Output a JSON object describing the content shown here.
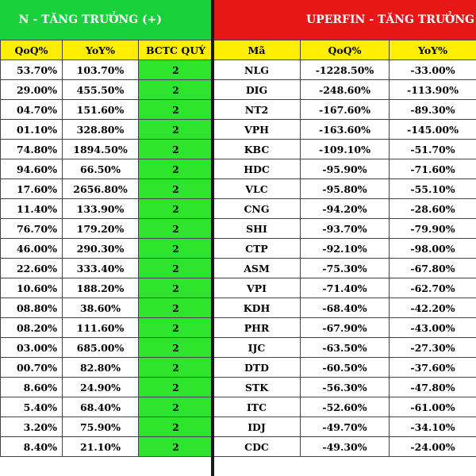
{
  "left": {
    "title": "N - TĂNG TRƯỞNG (+)",
    "headers": [
      "QoQ%",
      "YoY%",
      "BCTC QUÝ"
    ],
    "rows": [
      [
        "53.70%",
        "103.70%",
        "2"
      ],
      [
        "29.00%",
        "455.50%",
        "2"
      ],
      [
        "04.70%",
        "151.60%",
        "2"
      ],
      [
        "01.10%",
        "328.80%",
        "2"
      ],
      [
        "74.80%",
        "1894.50%",
        "2"
      ],
      [
        "94.60%",
        "66.50%",
        "2"
      ],
      [
        "17.60%",
        "2656.80%",
        "2"
      ],
      [
        "11.40%",
        "133.90%",
        "2"
      ],
      [
        "76.70%",
        "179.20%",
        "2"
      ],
      [
        "46.00%",
        "290.30%",
        "2"
      ],
      [
        "22.60%",
        "333.40%",
        "2"
      ],
      [
        "10.60%",
        "188.20%",
        "2"
      ],
      [
        "08.80%",
        "38.60%",
        "2"
      ],
      [
        "08.20%",
        "111.60%",
        "2"
      ],
      [
        "03.00%",
        "685.00%",
        "2"
      ],
      [
        "00.70%",
        "82.80%",
        "2"
      ],
      [
        "8.60%",
        "24.90%",
        "2"
      ],
      [
        "5.40%",
        "68.40%",
        "2"
      ],
      [
        "3.20%",
        "75.90%",
        "2"
      ],
      [
        "8.40%",
        "21.10%",
        "2"
      ]
    ]
  },
  "right": {
    "title": "UPERFIN - TĂNG TRƯỞNG",
    "headers": [
      "Mã",
      "QoQ%",
      "YoY%"
    ],
    "rows": [
      [
        "NLG",
        "-1228.50%",
        "-33.00%"
      ],
      [
        "DIG",
        "-248.60%",
        "-113.90%"
      ],
      [
        "NT2",
        "-167.60%",
        "-89.30%"
      ],
      [
        "VPH",
        "-163.60%",
        "-145.00%"
      ],
      [
        "KBC",
        "-109.10%",
        "-51.70%"
      ],
      [
        "HDC",
        "-95.90%",
        "-71.60%"
      ],
      [
        "VLC",
        "-95.80%",
        "-55.10%"
      ],
      [
        "CNG",
        "-94.20%",
        "-28.60%"
      ],
      [
        "SHI",
        "-93.70%",
        "-79.90%"
      ],
      [
        "CTP",
        "-92.10%",
        "-98.00%"
      ],
      [
        "ASM",
        "-75.30%",
        "-67.80%"
      ],
      [
        "VPI",
        "-71.40%",
        "-62.70%"
      ],
      [
        "KDH",
        "-68.40%",
        "-42.20%"
      ],
      [
        "PHR",
        "-67.90%",
        "-43.00%"
      ],
      [
        "IJC",
        "-63.50%",
        "-27.30%"
      ],
      [
        "DTD",
        "-60.50%",
        "-37.60%"
      ],
      [
        "STK",
        "-56.30%",
        "-47.80%"
      ],
      [
        "ITC",
        "-52.60%",
        "-61.00%"
      ],
      [
        "IDJ",
        "-49.70%",
        "-34.10%"
      ],
      [
        "CDC",
        "-49.30%",
        "-24.00%"
      ]
    ]
  },
  "colors": {
    "green_header": "#19d13a",
    "red_header": "#e81717",
    "yellow_header": "#ffee00",
    "green_cell": "#2ee52e"
  }
}
